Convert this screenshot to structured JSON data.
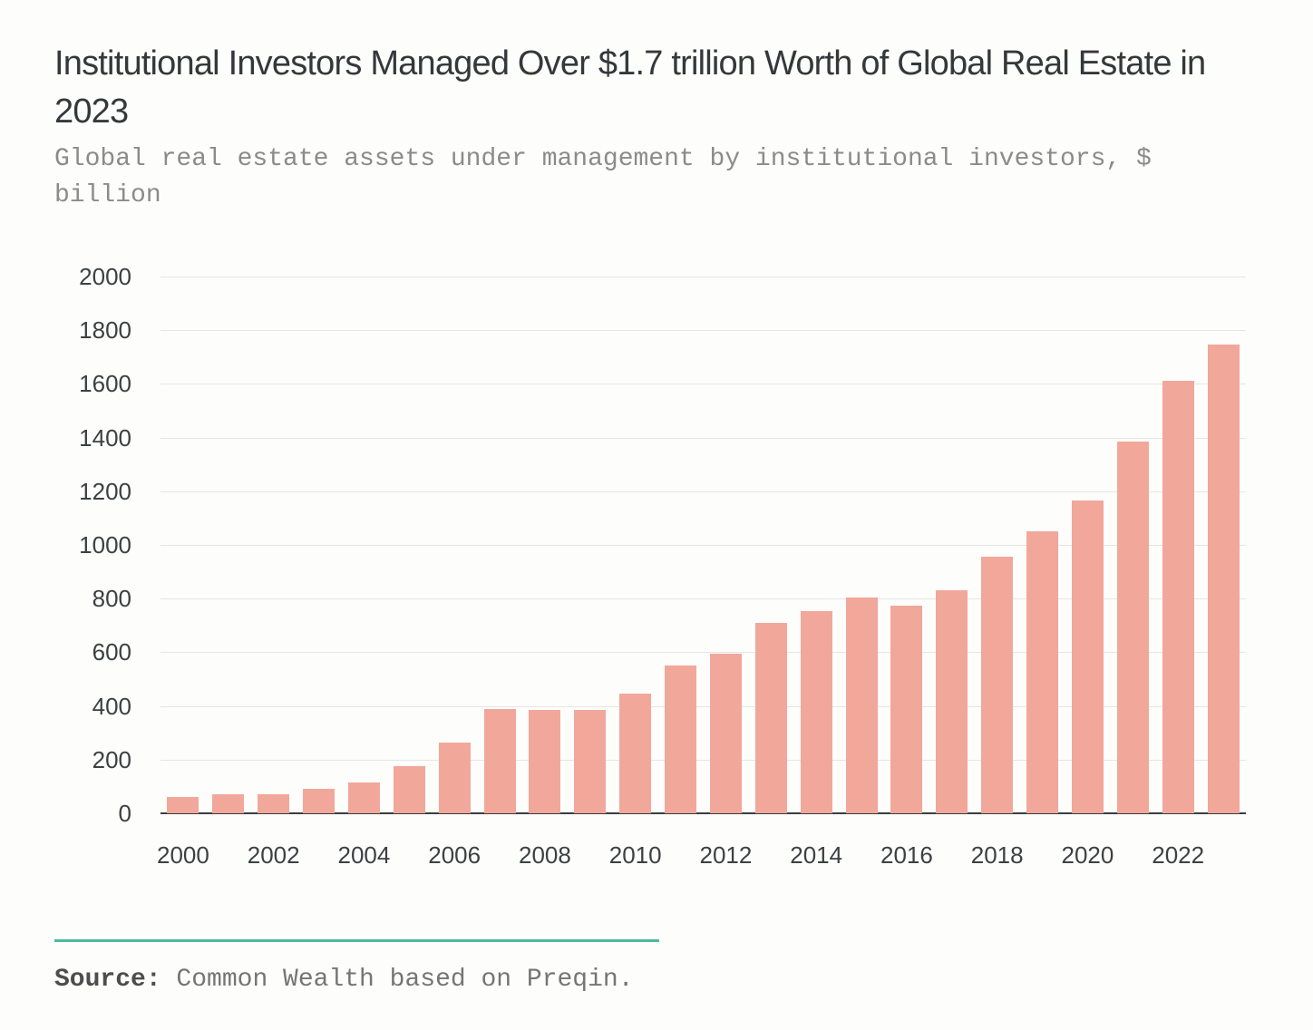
{
  "header": {
    "title": "Institutional Investors Managed Over $1.7 trillion Worth of Global Real Estate in 2023",
    "subtitle": "Global real estate assets under management by institutional investors, $ billion"
  },
  "chart_data": {
    "type": "bar",
    "title": "Institutional Investors Managed Over $1.7 trillion Worth of Global Real Estate in 2023",
    "subtitle": "Global real estate assets under management by institutional investors, $ billion",
    "categories": [
      2000,
      2001,
      2002,
      2003,
      2004,
      2005,
      2006,
      2007,
      2008,
      2009,
      2010,
      2011,
      2012,
      2013,
      2014,
      2015,
      2016,
      2017,
      2018,
      2019,
      2020,
      2021,
      2022,
      2023
    ],
    "values": [
      60,
      70,
      70,
      90,
      115,
      175,
      265,
      390,
      385,
      385,
      445,
      550,
      595,
      710,
      755,
      805,
      775,
      830,
      955,
      1050,
      1165,
      1385,
      1610,
      1745
    ],
    "x_tick_labels": [
      "2000",
      "2002",
      "2004",
      "2006",
      "2008",
      "2010",
      "2012",
      "2014",
      "2016",
      "2018",
      "2020",
      "2022"
    ],
    "x_tick_every": 2,
    "y_ticks": [
      0,
      200,
      400,
      600,
      800,
      1000,
      1200,
      1400,
      1600,
      1800,
      2000
    ],
    "ylim": [
      0,
      2000
    ],
    "xlabel": "",
    "ylabel": "",
    "grid": true,
    "legend": false,
    "bar_color": "#F2A79B"
  },
  "footer": {
    "source_label": "Source:",
    "source_text": " Common Wealth based on Preqin."
  },
  "colors": {
    "background": "#FDFDFB",
    "title_text": "#35383B",
    "subtitle_text": "#8B8B8B",
    "tick_text": "#3D4043",
    "gridline": "#E5E5E3",
    "axis_line": "#3A3D3F",
    "bar": "#F2A79B",
    "divider_accent": "#4CBA9B"
  }
}
